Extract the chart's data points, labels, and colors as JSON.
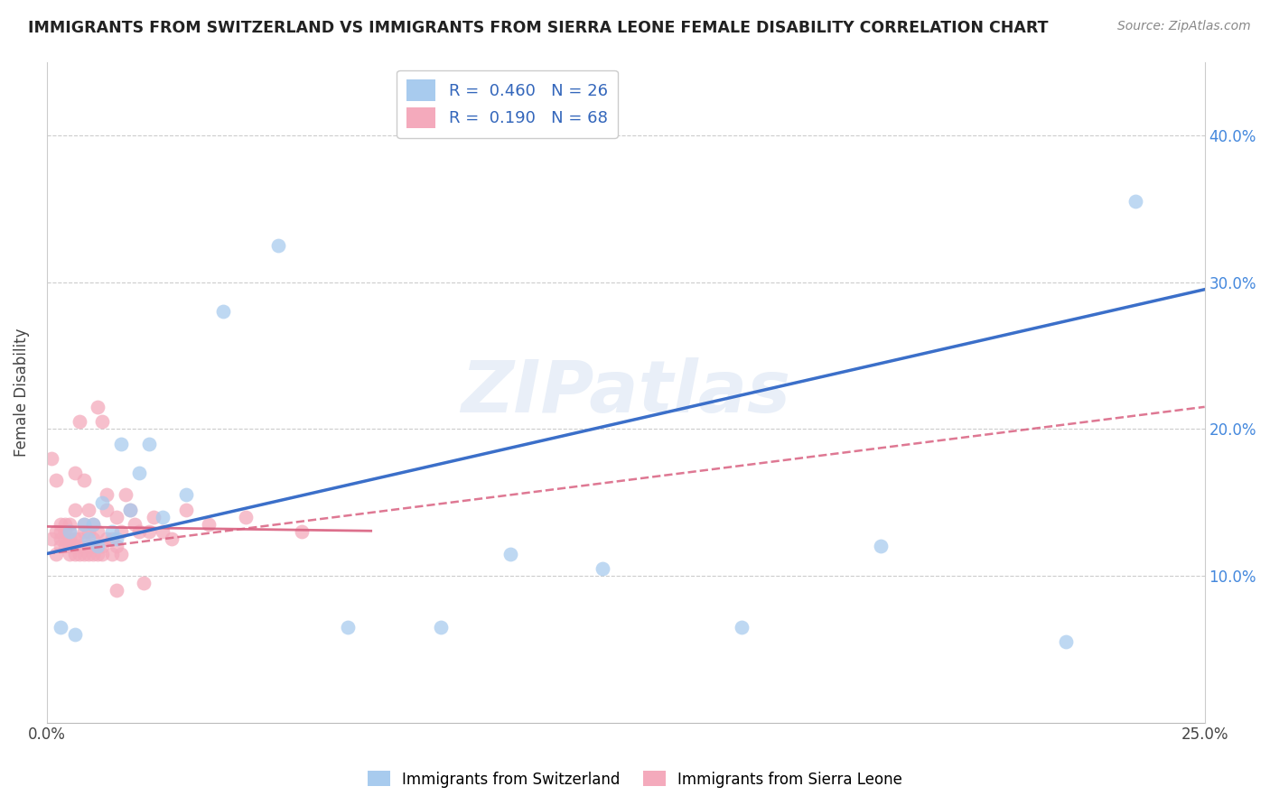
{
  "title": "IMMIGRANTS FROM SWITZERLAND VS IMMIGRANTS FROM SIERRA LEONE FEMALE DISABILITY CORRELATION CHART",
  "source": "Source: ZipAtlas.com",
  "ylabel": "Female Disability",
  "xlim": [
    0.0,
    0.25
  ],
  "ylim": [
    0.0,
    0.45
  ],
  "r_switzerland": 0.46,
  "n_switzerland": 26,
  "r_sierra_leone": 0.19,
  "n_sierra_leone": 68,
  "color_switzerland": "#A8CBEE",
  "color_sierra_leone": "#F4AABC",
  "line_color_switzerland": "#3B6FC9",
  "line_color_sierra_leone": "#D96080",
  "watermark": "ZIPatlas",
  "switzerland_x": [
    0.003,
    0.005,
    0.006,
    0.008,
    0.009,
    0.01,
    0.011,
    0.012,
    0.014,
    0.015,
    0.016,
    0.018,
    0.02,
    0.022,
    0.025,
    0.03,
    0.038,
    0.05,
    0.065,
    0.085,
    0.1,
    0.12,
    0.15,
    0.18,
    0.22,
    0.235
  ],
  "switzerland_y": [
    0.065,
    0.13,
    0.06,
    0.135,
    0.125,
    0.135,
    0.12,
    0.15,
    0.13,
    0.125,
    0.19,
    0.145,
    0.17,
    0.19,
    0.14,
    0.155,
    0.28,
    0.325,
    0.065,
    0.065,
    0.115,
    0.105,
    0.065,
    0.12,
    0.055,
    0.355
  ],
  "sierra_leone_x": [
    0.001,
    0.001,
    0.002,
    0.002,
    0.002,
    0.003,
    0.003,
    0.003,
    0.003,
    0.004,
    0.004,
    0.004,
    0.004,
    0.005,
    0.005,
    0.005,
    0.005,
    0.005,
    0.006,
    0.006,
    0.006,
    0.006,
    0.006,
    0.007,
    0.007,
    0.007,
    0.007,
    0.008,
    0.008,
    0.008,
    0.008,
    0.009,
    0.009,
    0.009,
    0.009,
    0.01,
    0.01,
    0.01,
    0.01,
    0.011,
    0.011,
    0.011,
    0.012,
    0.012,
    0.012,
    0.013,
    0.013,
    0.013,
    0.014,
    0.014,
    0.015,
    0.015,
    0.015,
    0.016,
    0.016,
    0.017,
    0.018,
    0.019,
    0.02,
    0.021,
    0.022,
    0.023,
    0.025,
    0.027,
    0.03,
    0.035,
    0.043,
    0.055
  ],
  "sierra_leone_y": [
    0.125,
    0.18,
    0.115,
    0.13,
    0.165,
    0.12,
    0.125,
    0.13,
    0.135,
    0.12,
    0.125,
    0.13,
    0.135,
    0.115,
    0.12,
    0.125,
    0.13,
    0.135,
    0.115,
    0.12,
    0.125,
    0.145,
    0.17,
    0.115,
    0.12,
    0.125,
    0.205,
    0.13,
    0.135,
    0.165,
    0.115,
    0.115,
    0.12,
    0.13,
    0.145,
    0.115,
    0.12,
    0.125,
    0.135,
    0.115,
    0.13,
    0.215,
    0.115,
    0.12,
    0.205,
    0.125,
    0.145,
    0.155,
    0.115,
    0.125,
    0.12,
    0.14,
    0.09,
    0.115,
    0.13,
    0.155,
    0.145,
    0.135,
    0.13,
    0.095,
    0.13,
    0.14,
    0.13,
    0.125,
    0.145,
    0.135,
    0.14,
    0.13
  ]
}
